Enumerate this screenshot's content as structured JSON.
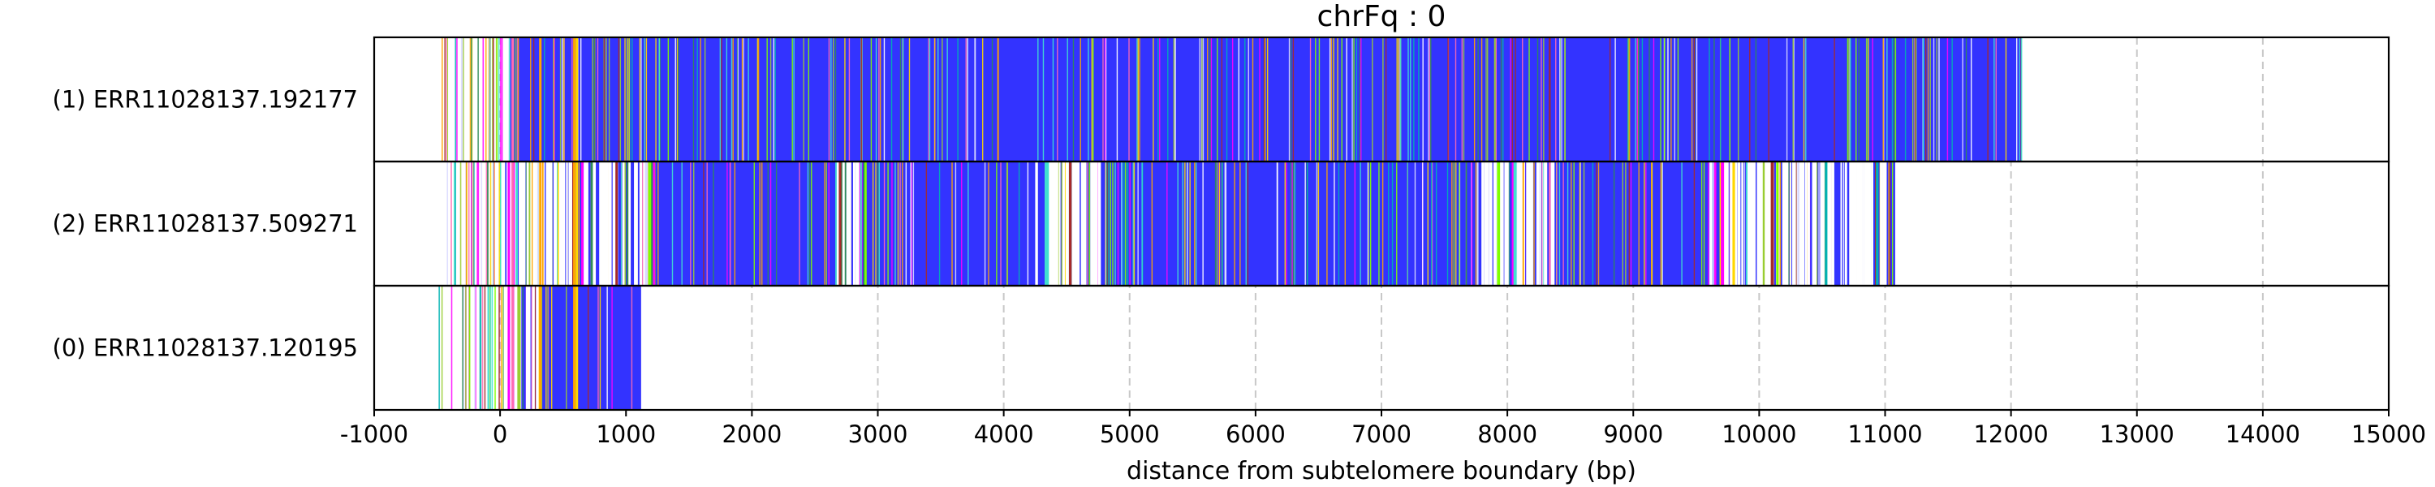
{
  "chart_data": {
    "type": "bar",
    "title": "chrFq : 0",
    "xlabel": "distance from subtelomere boundary (bp)",
    "ylabel": "",
    "xlim": [
      -1000,
      15000
    ],
    "xticks": [
      -1000,
      0,
      1000,
      2000,
      3000,
      4000,
      5000,
      6000,
      7000,
      8000,
      9000,
      10000,
      11000,
      12000,
      13000,
      14000,
      15000
    ],
    "grid": "vertical dashed",
    "colors": {
      "main": "#3333ff",
      "thin_lines": [
        "#ffffff",
        "#d9d9ff",
        "#00b3b3",
        "#2e8b57",
        "#9acd32",
        "#ffa500",
        "#ff00ff",
        "#ff69b4",
        "#a52a2a",
        "#ffd700",
        "#7fff00",
        "#40e0d0"
      ],
      "grid": "#c8c8c8",
      "frame": "#000000"
    },
    "reads": [
      {
        "label": "(1) ERR11028137.192177",
        "start": 80,
        "end": 12080,
        "scatter_start": -500,
        "dense_white_regions": []
      },
      {
        "label": "(2) ERR11028137.509271",
        "start": 40,
        "end": 11080,
        "scatter_start": -450,
        "dense_white_regions": [
          [
            40,
            1220
          ],
          [
            2620,
            2900
          ],
          [
            4250,
            4750
          ],
          [
            7750,
            8350
          ],
          [
            9600,
            11000
          ]
        ]
      },
      {
        "label": "(0) ERR11028137.120195",
        "start": 30,
        "end": 1120,
        "scatter_start": -520,
        "dense_white_regions": [
          [
            30,
            300
          ]
        ]
      }
    ]
  }
}
